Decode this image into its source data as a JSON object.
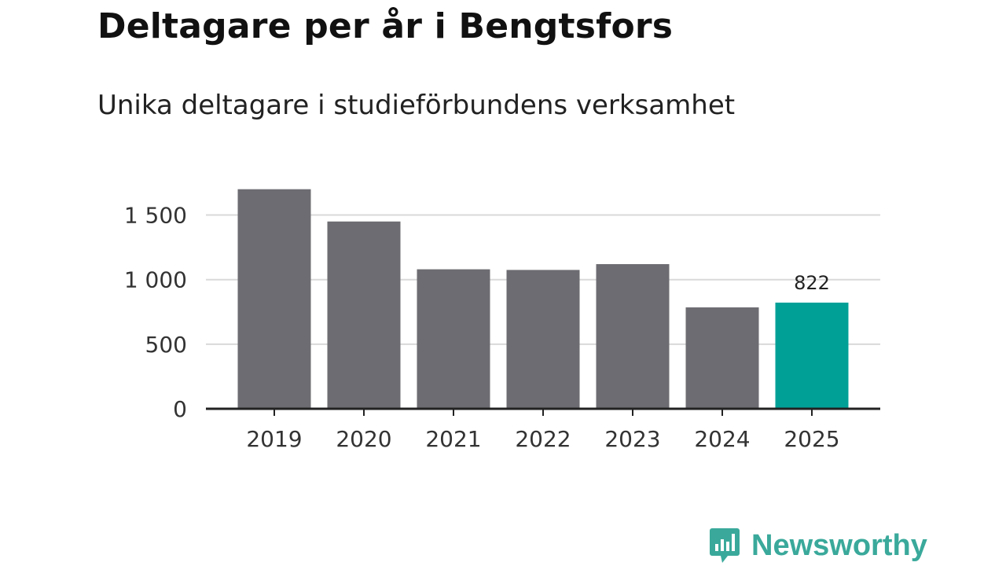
{
  "title": "Deltagare per år i Bengtsfors",
  "subtitle": "Unika deltagare i studieförbundens verksamhet",
  "brand": {
    "name": "Newsworthy",
    "icon": "newsworthy-logo-icon",
    "color": "#3aa99b"
  },
  "chart_data": {
    "type": "bar",
    "categories": [
      "2019",
      "2020",
      "2021",
      "2022",
      "2023",
      "2024",
      "2025"
    ],
    "values": [
      1700,
      1450,
      1080,
      1075,
      1120,
      785,
      822
    ],
    "ylim": [
      0,
      1750
    ],
    "yticks": [
      0,
      500,
      1000,
      1500
    ],
    "ytick_labels": [
      "0",
      "500",
      "1 000",
      "1 500"
    ],
    "grid": true,
    "bar_color": "#6d6c72",
    "highlight_color": "#00a097",
    "highlight_index": 6,
    "data_labels": [
      {
        "index": 6,
        "text": "822"
      }
    ]
  }
}
